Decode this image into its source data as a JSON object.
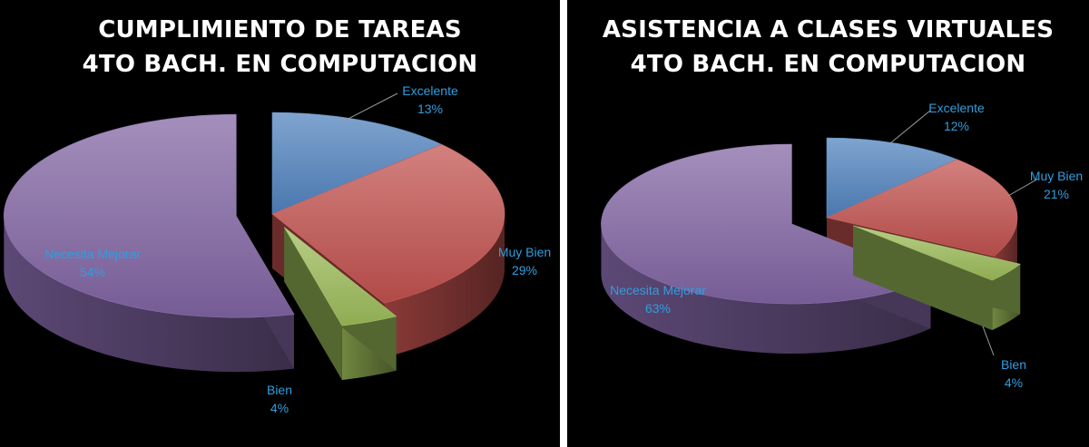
{
  "chart_data": [
    {
      "type": "pie",
      "title_lines": [
        "CUMPLIMIENTO DE TAREAS",
        "4TO BACH. EN COMPUTACION"
      ],
      "slices": [
        {
          "label": "Excelente",
          "value": 13,
          "value_label": "13%",
          "color": "#4f81bd"
        },
        {
          "label": "Muy Bien",
          "value": 29,
          "value_label": "29%",
          "color": "#c0504d"
        },
        {
          "label": "Bien",
          "value": 4,
          "value_label": "4%",
          "color": "#9bbb59"
        },
        {
          "label": "Necesita Mejorar",
          "value": 54,
          "value_label": "54%",
          "color": "#8064a2"
        }
      ],
      "legend": "none",
      "label_color": "#2f9ee0",
      "style": "3d-exploded"
    },
    {
      "type": "pie",
      "title_lines": [
        "ASISTENCIA A CLASES VIRTUALES",
        "4TO BACH. EN COMPUTACION"
      ],
      "slices": [
        {
          "label": "Excelente",
          "value": 12,
          "value_label": "12%",
          "color": "#4f81bd"
        },
        {
          "label": "Muy Bien",
          "value": 21,
          "value_label": "21%",
          "color": "#c0504d"
        },
        {
          "label": "Bien",
          "value": 4,
          "value_label": "4%",
          "color": "#9bbb59"
        },
        {
          "label": "Necesita Mejorar",
          "value": 63,
          "value_label": "63%",
          "color": "#8064a2"
        }
      ],
      "legend": "none",
      "label_color": "#2f9ee0",
      "style": "3d-exploded"
    }
  ]
}
